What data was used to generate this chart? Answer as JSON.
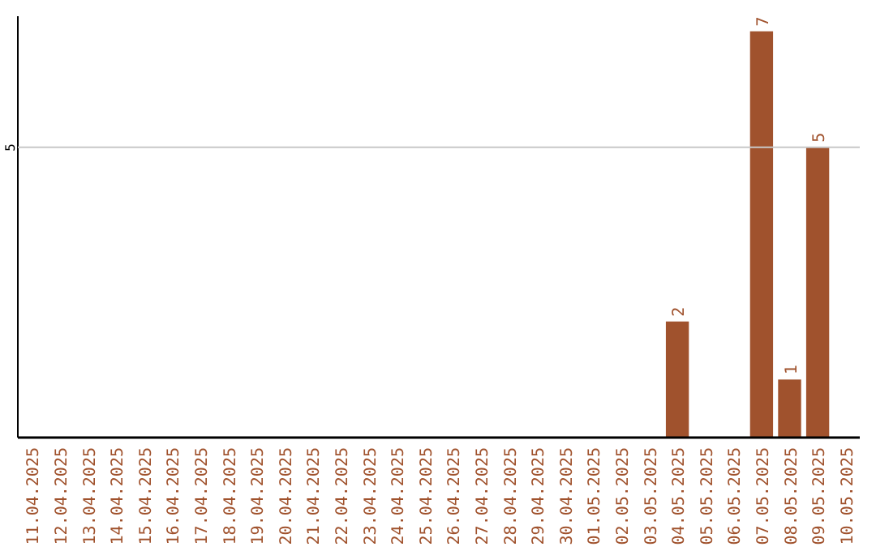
{
  "chart_data": {
    "type": "bar",
    "categories": [
      "11.04.2025",
      "12.04.2025",
      "13.04.2025",
      "14.04.2025",
      "15.04.2025",
      "16.04.2025",
      "17.04.2025",
      "18.04.2025",
      "19.04.2025",
      "20.04.2025",
      "21.04.2025",
      "22.04.2025",
      "23.04.2025",
      "24.04.2025",
      "25.04.2025",
      "26.04.2025",
      "27.04.2025",
      "28.04.2025",
      "29.04.2025",
      "30.04.2025",
      "01.05.2025",
      "02.05.2025",
      "03.05.2025",
      "04.05.2025",
      "05.05.2025",
      "06.05.2025",
      "07.05.2025",
      "08.05.2025",
      "09.05.2025",
      "10.05.2025"
    ],
    "values": [
      null,
      null,
      null,
      null,
      null,
      null,
      null,
      null,
      null,
      null,
      null,
      null,
      null,
      null,
      null,
      null,
      null,
      null,
      null,
      null,
      null,
      null,
      null,
      2,
      null,
      null,
      7,
      1,
      5,
      null
    ],
    "data_labels": true,
    "color": "#a0522d",
    "ylim": [
      0,
      7.26
    ],
    "ref_lines": [
      {
        "axis": "y",
        "value": 5,
        "label": "5",
        "color": "#c8c8c8"
      }
    ]
  }
}
